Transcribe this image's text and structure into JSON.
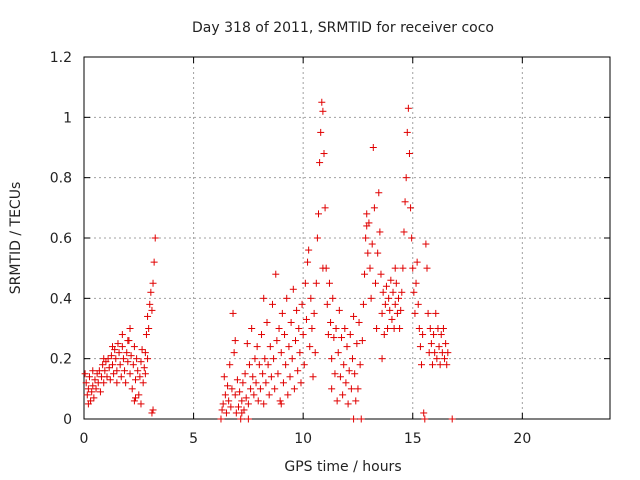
{
  "chart_data": {
    "type": "scatter",
    "title": "Day 318 of 2011, SRMTID for receiver coco",
    "xlabel": "GPS time / hours",
    "ylabel": "SRMTID / TECUs",
    "xlim": [
      0,
      24
    ],
    "ylim": [
      0,
      1.2
    ],
    "x_ticks": [
      0,
      5,
      10,
      15,
      20
    ],
    "y_ticks": [
      0,
      0.2,
      0.4,
      0.6,
      0.8,
      1,
      1.2
    ],
    "grid": true,
    "marker": "plus",
    "marker_color": "#e00000",
    "series": [
      {
        "points": [
          [
            0.05,
            0.15
          ],
          [
            0.1,
            0.12
          ],
          [
            0.15,
            0.08
          ],
          [
            0.2,
            0.1
          ],
          [
            0.25,
            0.14
          ],
          [
            0.3,
            0.06
          ],
          [
            0.35,
            0.09
          ],
          [
            0.4,
            0.11
          ],
          [
            0.45,
            0.07
          ],
          [
            0.5,
            0.13
          ],
          [
            0.55,
            0.1
          ],
          [
            0.6,
            0.15
          ],
          [
            0.65,
            0.12
          ],
          [
            0.7,
            0.16
          ],
          [
            0.75,
            0.09
          ],
          [
            0.8,
            0.14
          ],
          [
            0.85,
            0.18
          ],
          [
            0.9,
            0.12
          ],
          [
            0.95,
            0.16
          ],
          [
            1.0,
            0.19
          ],
          [
            1.05,
            0.14
          ],
          [
            1.1,
            0.2
          ],
          [
            1.15,
            0.17
          ],
          [
            1.2,
            0.13
          ],
          [
            1.25,
            0.21
          ],
          [
            1.3,
            0.18
          ],
          [
            1.35,
            0.15
          ],
          [
            1.4,
            0.23
          ],
          [
            1.45,
            0.2
          ],
          [
            1.5,
            0.16
          ],
          [
            1.55,
            0.25
          ],
          [
            1.6,
            0.22
          ],
          [
            1.65,
            0.18
          ],
          [
            1.7,
            0.14
          ],
          [
            1.75,
            0.24
          ],
          [
            1.8,
            0.2
          ],
          [
            1.85,
            0.16
          ],
          [
            1.9,
            0.12
          ],
          [
            1.95,
            0.22
          ],
          [
            2.0,
            0.19
          ],
          [
            2.05,
            0.26
          ],
          [
            2.1,
            0.15
          ],
          [
            2.15,
            0.21
          ],
          [
            2.2,
            0.1
          ],
          [
            2.25,
            0.18
          ],
          [
            2.3,
            0.24
          ],
          [
            2.35,
            0.13
          ],
          [
            2.4,
            0.2
          ],
          [
            2.45,
            0.16
          ],
          [
            2.5,
            0.08
          ],
          [
            2.55,
            0.14
          ],
          [
            2.6,
            0.19
          ],
          [
            2.65,
            0.23
          ],
          [
            2.7,
            0.12
          ],
          [
            2.75,
            0.17
          ],
          [
            2.8,
            0.22
          ],
          [
            2.85,
            0.28
          ],
          [
            2.9,
            0.34
          ],
          [
            2.95,
            0.3
          ],
          [
            3.0,
            0.38
          ],
          [
            3.05,
            0.42
          ],
          [
            3.1,
            0.36
          ],
          [
            3.15,
            0.45
          ],
          [
            3.2,
            0.52
          ],
          [
            3.25,
            0.6
          ],
          [
            3.15,
            0.03
          ],
          [
            3.1,
            0.02
          ],
          [
            2.3,
            0.06
          ],
          [
            2.35,
            0.07
          ],
          [
            0.9,
            0.2
          ],
          [
            1.3,
            0.24
          ],
          [
            1.75,
            0.28
          ],
          [
            2.1,
            0.3
          ],
          [
            2.6,
            0.05
          ],
          [
            2.8,
            0.15
          ],
          [
            0.4,
            0.16
          ],
          [
            0.2,
            0.05
          ],
          [
            1.5,
            0.12
          ],
          [
            2.0,
            0.26
          ],
          [
            2.9,
            0.2
          ],
          [
            6.25,
            0.0
          ],
          [
            6.3,
            0.03
          ],
          [
            6.35,
            0.05
          ],
          [
            6.4,
            0.14
          ],
          [
            6.45,
            0.08
          ],
          [
            6.5,
            0.02
          ],
          [
            6.55,
            0.11
          ],
          [
            6.6,
            0.06
          ],
          [
            6.65,
            0.18
          ],
          [
            6.7,
            0.04
          ],
          [
            6.75,
            0.1
          ],
          [
            6.8,
            0.35
          ],
          [
            6.85,
            0.22
          ],
          [
            6.9,
            0.08
          ],
          [
            6.95,
            0.02
          ],
          [
            7.0,
            0.13
          ],
          [
            7.05,
            0.04
          ],
          [
            7.1,
            0.09
          ],
          [
            7.15,
            0.0
          ],
          [
            7.2,
            0.06
          ],
          [
            7.25,
            0.12
          ],
          [
            7.3,
            0.03
          ],
          [
            7.35,
            0.15
          ],
          [
            7.4,
            0.07
          ],
          [
            7.45,
            0.25
          ],
          [
            7.5,
            0.05
          ],
          [
            7.55,
            0.18
          ],
          [
            7.6,
            0.1
          ],
          [
            7.65,
            0.3
          ],
          [
            7.7,
            0.14
          ],
          [
            7.75,
            0.08
          ],
          [
            7.8,
            0.2
          ],
          [
            7.85,
            0.12
          ],
          [
            7.9,
            0.24
          ],
          [
            7.95,
            0.06
          ],
          [
            8.0,
            0.18
          ],
          [
            8.05,
            0.1
          ],
          [
            8.1,
            0.28
          ],
          [
            8.15,
            0.15
          ],
          [
            8.2,
            0.05
          ],
          [
            8.25,
            0.2
          ],
          [
            8.3,
            0.12
          ],
          [
            8.35,
            0.32
          ],
          [
            8.4,
            0.18
          ],
          [
            8.45,
            0.08
          ],
          [
            8.5,
            0.24
          ],
          [
            8.55,
            0.14
          ],
          [
            8.6,
            0.38
          ],
          [
            8.65,
            0.2
          ],
          [
            8.7,
            0.1
          ],
          [
            8.75,
            0.48
          ],
          [
            8.8,
            0.26
          ],
          [
            8.85,
            0.15
          ],
          [
            8.9,
            0.3
          ],
          [
            8.95,
            0.06
          ],
          [
            9.0,
            0.22
          ],
          [
            9.05,
            0.35
          ],
          [
            9.1,
            0.12
          ],
          [
            9.15,
            0.28
          ],
          [
            9.2,
            0.18
          ],
          [
            9.25,
            0.4
          ],
          [
            9.3,
            0.08
          ],
          [
            9.35,
            0.24
          ],
          [
            9.4,
            0.14
          ],
          [
            9.45,
            0.32
          ],
          [
            9.5,
            0.2
          ],
          [
            9.55,
            0.43
          ],
          [
            9.6,
            0.1
          ],
          [
            9.65,
            0.26
          ],
          [
            9.7,
            0.36
          ],
          [
            9.75,
            0.16
          ],
          [
            9.8,
            0.3
          ],
          [
            9.85,
            0.22
          ],
          [
            9.9,
            0.12
          ],
          [
            9.95,
            0.38
          ],
          [
            10.0,
            0.28
          ],
          [
            10.05,
            0.18
          ],
          [
            10.1,
            0.45
          ],
          [
            10.15,
            0.33
          ],
          [
            10.2,
            0.52
          ],
          [
            10.25,
            0.56
          ],
          [
            10.3,
            0.24
          ],
          [
            10.35,
            0.4
          ],
          [
            10.4,
            0.3
          ],
          [
            10.45,
            0.14
          ],
          [
            10.5,
            0.35
          ],
          [
            10.55,
            0.22
          ],
          [
            10.6,
            0.45
          ],
          [
            10.65,
            0.6
          ],
          [
            10.7,
            0.68
          ],
          [
            10.75,
            0.85
          ],
          [
            10.8,
            0.95
          ],
          [
            10.85,
            1.05
          ],
          [
            10.9,
            1.02
          ],
          [
            10.95,
            0.88
          ],
          [
            11.0,
            0.7
          ],
          [
            11.05,
            0.5
          ],
          [
            11.1,
            0.38
          ],
          [
            11.15,
            0.28
          ],
          [
            11.2,
            0.45
          ],
          [
            11.25,
            0.32
          ],
          [
            11.3,
            0.2
          ],
          [
            11.35,
            0.4
          ],
          [
            11.4,
            0.27
          ],
          [
            11.45,
            0.15
          ],
          [
            11.5,
            0.3
          ],
          [
            11.55,
            0.06
          ],
          [
            11.6,
            0.22
          ],
          [
            11.65,
            0.36
          ],
          [
            11.7,
            0.14
          ],
          [
            11.75,
            0.27
          ],
          [
            11.8,
            0.08
          ],
          [
            11.85,
            0.18
          ],
          [
            11.9,
            0.3
          ],
          [
            11.95,
            0.12
          ],
          [
            12.0,
            0.24
          ],
          [
            12.05,
            0.05
          ],
          [
            12.1,
            0.16
          ],
          [
            12.15,
            0.28
          ],
          [
            12.2,
            0.1
          ],
          [
            12.25,
            0.2
          ],
          [
            12.3,
            0.34
          ],
          [
            12.35,
            0.15
          ],
          [
            12.4,
            0.06
          ],
          [
            12.45,
            0.25
          ],
          [
            12.5,
            0.1
          ],
          [
            12.55,
            0.32
          ],
          [
            12.6,
            0.18
          ],
          [
            12.65,
            0.0
          ],
          [
            12.7,
            0.26
          ],
          [
            12.75,
            0.38
          ],
          [
            12.8,
            0.48
          ],
          [
            12.85,
            0.6
          ],
          [
            12.9,
            0.68
          ],
          [
            12.95,
            0.55
          ],
          [
            13.0,
            0.65
          ],
          [
            13.05,
            0.5
          ],
          [
            13.1,
            0.4
          ],
          [
            13.15,
            0.58
          ],
          [
            13.2,
            0.9
          ],
          [
            13.25,
            0.7
          ],
          [
            13.3,
            0.45
          ],
          [
            13.35,
            0.3
          ],
          [
            13.4,
            0.55
          ],
          [
            13.45,
            0.75
          ],
          [
            13.5,
            0.62
          ],
          [
            13.55,
            0.48
          ],
          [
            13.6,
            0.35
          ],
          [
            13.65,
            0.42
          ],
          [
            13.7,
            0.28
          ],
          [
            13.75,
            0.38
          ],
          [
            13.8,
            0.44
          ],
          [
            13.85,
            0.3
          ],
          [
            13.9,
            0.4
          ],
          [
            13.95,
            0.36
          ],
          [
            14.0,
            0.46
          ],
          [
            14.05,
            0.33
          ],
          [
            14.1,
            0.42
          ],
          [
            14.15,
            0.3
          ],
          [
            14.2,
            0.38
          ],
          [
            14.25,
            0.45
          ],
          [
            14.3,
            0.35
          ],
          [
            14.35,
            0.4
          ],
          [
            14.4,
            0.3
          ],
          [
            14.45,
            0.36
          ],
          [
            14.5,
            0.42
          ],
          [
            14.55,
            0.5
          ],
          [
            14.6,
            0.62
          ],
          [
            14.65,
            0.72
          ],
          [
            14.7,
            0.8
          ],
          [
            14.75,
            0.95
          ],
          [
            14.8,
            1.03
          ],
          [
            14.85,
            0.88
          ],
          [
            14.9,
            0.7
          ],
          [
            14.95,
            0.6
          ],
          [
            15.0,
            0.5
          ],
          [
            15.05,
            0.42
          ],
          [
            15.1,
            0.35
          ],
          [
            15.15,
            0.45
          ],
          [
            15.2,
            0.52
          ],
          [
            15.25,
            0.38
          ],
          [
            15.3,
            0.3
          ],
          [
            15.35,
            0.24
          ],
          [
            15.4,
            0.18
          ],
          [
            15.45,
            0.28
          ],
          [
            15.5,
            0.02
          ],
          [
            15.55,
            0.0
          ],
          [
            15.6,
            0.58
          ],
          [
            15.65,
            0.5
          ],
          [
            15.7,
            0.35
          ],
          [
            15.75,
            0.22
          ],
          [
            15.8,
            0.3
          ],
          [
            15.85,
            0.25
          ],
          [
            15.9,
            0.18
          ],
          [
            15.95,
            0.28
          ],
          [
            16.0,
            0.22
          ],
          [
            16.05,
            0.35
          ],
          [
            16.1,
            0.2
          ],
          [
            16.15,
            0.3
          ],
          [
            16.2,
            0.24
          ],
          [
            16.25,
            0.18
          ],
          [
            16.3,
            0.28
          ],
          [
            16.35,
            0.22
          ],
          [
            16.4,
            0.3
          ],
          [
            16.45,
            0.2
          ],
          [
            16.5,
            0.25
          ],
          [
            16.55,
            0.18
          ],
          [
            16.6,
            0.22
          ],
          [
            16.8,
            0.0
          ],
          [
            12.3,
            0.0
          ],
          [
            7.5,
            0.0
          ],
          [
            7.2,
            0.02
          ],
          [
            9.0,
            0.05
          ],
          [
            11.3,
            0.1
          ],
          [
            13.6,
            0.2
          ],
          [
            14.2,
            0.5
          ],
          [
            12.9,
            0.64
          ],
          [
            10.9,
            0.5
          ],
          [
            8.2,
            0.4
          ],
          [
            6.9,
            0.26
          ]
        ]
      }
    ]
  }
}
